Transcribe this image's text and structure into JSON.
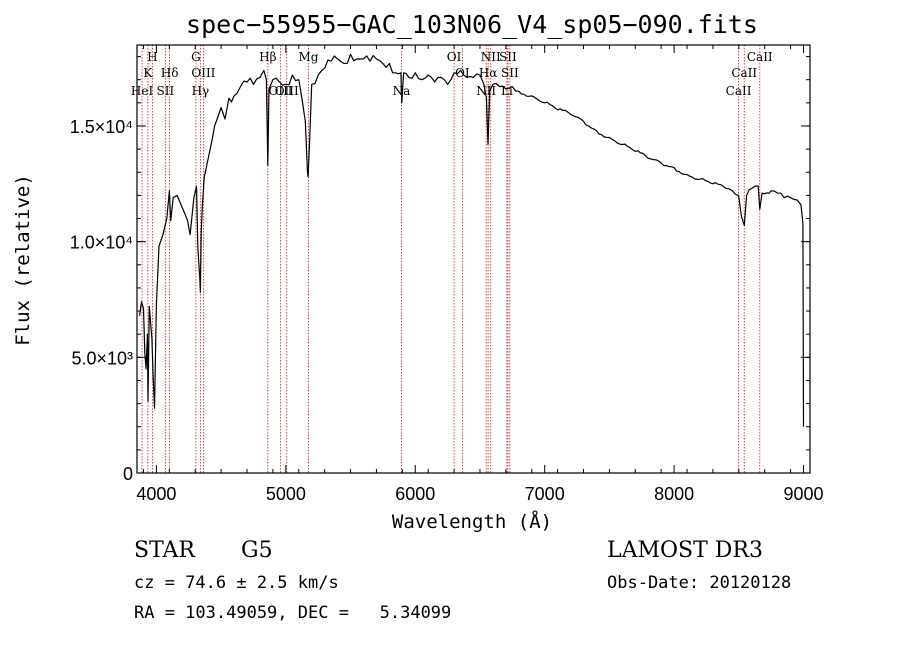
{
  "header": {
    "title": "spec−55955−GAC_103N06_V4_sp05−090.fits"
  },
  "chart_data": {
    "type": "line",
    "title": "spec−55955−GAC_103N06_V4_sp05−090.fits",
    "xlabel": "Wavelength (Å)",
    "ylabel": "Flux (relative)",
    "xlim": [
      3850,
      9050
    ],
    "ylim": [
      0,
      18500
    ],
    "x_ticks": [
      {
        "value": 4000,
        "label": "4000"
      },
      {
        "value": 5000,
        "label": "5000"
      },
      {
        "value": 6000,
        "label": "6000"
      },
      {
        "value": 7000,
        "label": "7000"
      },
      {
        "value": 8000,
        "label": "8000"
      },
      {
        "value": 9000,
        "label": "9000"
      }
    ],
    "y_ticks": [
      {
        "value": 0,
        "label": "0"
      },
      {
        "value": 5000,
        "label": "5.0×10³"
      },
      {
        "value": 10000,
        "label": "1.0×10⁴"
      },
      {
        "value": 15000,
        "label": "1.5×10⁴"
      }
    ],
    "spectrum": {
      "x": [
        3870,
        3885,
        3900,
        3910,
        3920,
        3930,
        3935,
        3945,
        3955,
        3965,
        3975,
        3985,
        4000,
        4020,
        4050,
        4080,
        4100,
        4110,
        4130,
        4160,
        4190,
        4220,
        4260,
        4290,
        4310,
        4320,
        4335,
        4340,
        4345,
        4355,
        4370,
        4400,
        4430,
        4470,
        4500,
        4530,
        4560,
        4600,
        4650,
        4700,
        4750,
        4800,
        4830,
        4850,
        4861,
        4870,
        4900,
        4950,
        5000,
        5050,
        5100,
        5150,
        5167,
        5172,
        5183,
        5200,
        5250,
        5300,
        5350,
        5400,
        5450,
        5500,
        5550,
        5600,
        5650,
        5700,
        5750,
        5800,
        5850,
        5889,
        5896,
        5910,
        5950,
        6000,
        6050,
        6100,
        6150,
        6200,
        6250,
        6300,
        6350,
        6400,
        6450,
        6500,
        6530,
        6550,
        6562,
        6575,
        6600,
        6650,
        6700,
        6750,
        6800,
        6900,
        7000,
        7100,
        7200,
        7300,
        7400,
        7500,
        7600,
        7700,
        7800,
        7900,
        8000,
        8100,
        8200,
        8300,
        8400,
        8450,
        8498,
        8520,
        8542,
        8560,
        8600,
        8650,
        8662,
        8680,
        8750,
        8800,
        8850,
        8900,
        8950,
        8980,
        8995,
        9000
      ],
      "y": [
        6800,
        7400,
        7100,
        5200,
        4500,
        6000,
        3100,
        7200,
        6500,
        5800,
        4100,
        2800,
        7300,
        9800,
        10300,
        11000,
        12200,
        10900,
        11900,
        12000,
        11600,
        11200,
        10300,
        11900,
        12400,
        9800,
        8400,
        7800,
        10200,
        11600,
        12800,
        13600,
        14400,
        15300,
        15800,
        15300,
        16200,
        16300,
        16700,
        16900,
        16800,
        17100,
        17400,
        17000,
        13300,
        16600,
        17000,
        16900,
        16800,
        17200,
        17000,
        15200,
        13000,
        12800,
        14200,
        16800,
        17200,
        17500,
        17800,
        17900,
        17700,
        18100,
        17900,
        17900,
        17800,
        17900,
        17700,
        17700,
        17300,
        17300,
        16000,
        17300,
        17100,
        17300,
        17000,
        17200,
        16900,
        17100,
        16800,
        17300,
        17400,
        17100,
        17100,
        17200,
        16800,
        16200,
        14200,
        16500,
        16800,
        16700,
        16600,
        16700,
        16500,
        16300,
        16000,
        15700,
        15500,
        15200,
        14800,
        14500,
        14200,
        13900,
        13600,
        13400,
        13200,
        12900,
        12700,
        12500,
        12300,
        12200,
        12000,
        11100,
        10700,
        12000,
        12300,
        12400,
        11400,
        12100,
        12200,
        12100,
        11900,
        11900,
        11800,
        11600,
        10800,
        2000
      ]
    },
    "lines": [
      {
        "name": "H",
        "wavelength": 3969,
        "level": 1
      },
      {
        "name": "K",
        "wavelength": 3934,
        "level": 2
      },
      {
        "name": "HeI",
        "wavelength": 3889,
        "level": 3
      },
      {
        "name": "SII",
        "wavelength": 4069,
        "level": 3
      },
      {
        "name": "Hδ",
        "wavelength": 4102,
        "level": 2
      },
      {
        "name": "G",
        "wavelength": 4305,
        "level": 1
      },
      {
        "name": "OIII",
        "wavelength": 4363,
        "level": 2
      },
      {
        "name": "Hγ",
        "wavelength": 4340,
        "level": 3
      },
      {
        "name": "Hβ",
        "wavelength": 4861,
        "level": 1
      },
      {
        "name": "OIII",
        "wavelength": 4959,
        "level": 4
      },
      {
        "name": "OIII",
        "wavelength": 5007,
        "level": 4
      },
      {
        "name": "Mg",
        "wavelength": 5175,
        "level": 1
      },
      {
        "name": "Na",
        "wavelength": 5893,
        "level": 4
      },
      {
        "name": "OI",
        "wavelength": 6300,
        "level": 1
      },
      {
        "name": "OI",
        "wavelength": 6364,
        "level": 2
      },
      {
        "name": "NII",
        "wavelength": 6548,
        "level": 4
      },
      {
        "name": "NII",
        "wavelength": 6583,
        "level": 1
      },
      {
        "name": "Hα",
        "wavelength": 6563,
        "level": 2
      },
      {
        "name": "SII",
        "wavelength": 6716,
        "level": 1
      },
      {
        "name": "SII",
        "wavelength": 6731,
        "level": 2
      },
      {
        "name": "Li",
        "wavelength": 6708,
        "level": 4
      },
      {
        "name": "CaII",
        "wavelength": 8498,
        "level": 4
      },
      {
        "name": "CaII",
        "wavelength": 8542,
        "level": 2
      },
      {
        "name": "CaII",
        "wavelength": 8662,
        "level": 1
      }
    ],
    "colors": {
      "line_marker": "#cc2222",
      "spectrum": "#000000",
      "axis": "#000000"
    }
  },
  "footer": {
    "object_class": "STAR",
    "subclass": "G5",
    "survey": "LAMOST DR3",
    "redshift": "cz = 74.6 ± 2.5 km/s",
    "obs_date": "Obs-Date: 20120128",
    "coords": "RA = 103.49059, DEC =   5.34099"
  }
}
